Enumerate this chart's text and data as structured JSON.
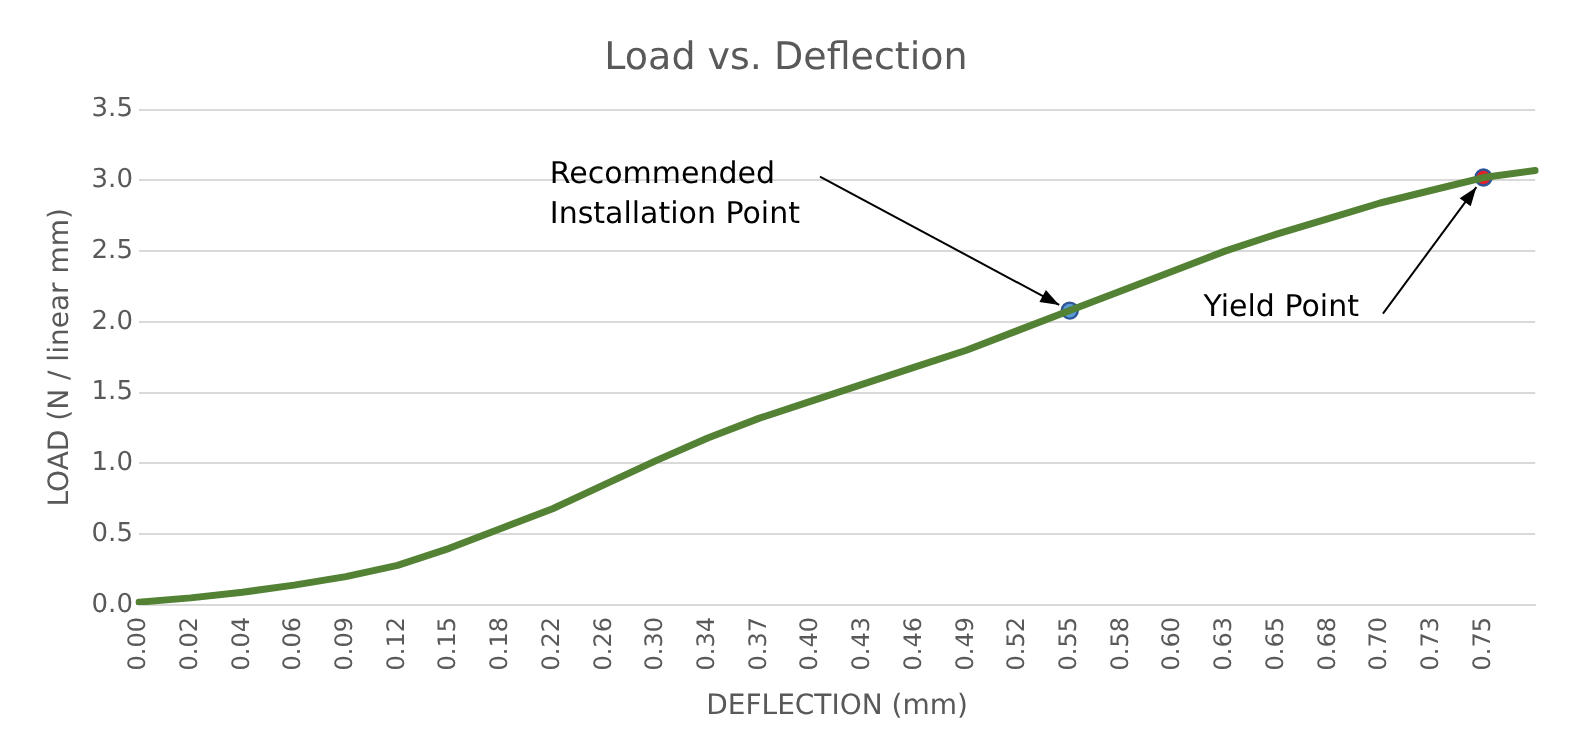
{
  "chart_data": {
    "type": "line",
    "title": "Load vs. Deflection",
    "xlabel": "DEFLECTION (mm)",
    "ylabel": "LOAD (N / linear mm)",
    "categories": [
      "0.00",
      "0.02",
      "0.04",
      "0.06",
      "0.09",
      "0.12",
      "0.15",
      "0.18",
      "0.22",
      "0.26",
      "0.30",
      "0.34",
      "0.37",
      "0.40",
      "0.43",
      "0.46",
      "0.49",
      "0.52",
      "0.55",
      "0.58",
      "0.60",
      "0.63",
      "0.65",
      "0.68",
      "0.70",
      "0.73",
      "0.75",
      null
    ],
    "series": [
      {
        "color": "#548235",
        "marker": "none",
        "values": [
          0.02,
          0.05,
          0.09,
          0.14,
          0.2,
          0.28,
          0.4,
          0.54,
          0.68,
          0.85,
          1.02,
          1.18,
          1.32,
          1.44,
          1.56,
          1.68,
          1.8,
          1.94,
          2.08,
          2.22,
          2.36,
          2.5,
          2.62,
          2.73,
          2.84,
          2.93,
          3.02,
          3.07
        ]
      },
      {
        "type": "scatter",
        "marker": "circle",
        "x": [
          "0.55",
          "0.75"
        ],
        "colors": [
          "#5b9bd5",
          "#e0202a"
        ],
        "values": [
          2.08,
          3.02
        ]
      }
    ],
    "ylim": [
      0,
      3.5
    ],
    "yticks": [
      {
        "value": 0,
        "label": "0.0"
      },
      {
        "value": 0.5,
        "label": "0.5"
      },
      {
        "value": 1,
        "label": "1.0"
      },
      {
        "value": 1.5,
        "label": "1.5"
      },
      {
        "value": 2,
        "label": "2.0"
      },
      {
        "value": 2.5,
        "label": "2.5"
      },
      {
        "value": 3,
        "label": "3.0"
      },
      {
        "value": 3.5,
        "label": "3.5"
      }
    ],
    "grid": "y",
    "legend": false,
    "line_style": "solid",
    "annotations": [
      {
        "text": "Recommended\nInstallation Point",
        "x": "0.55",
        "y": 2.08
      },
      {
        "text": "Yield Point",
        "x": "0.75",
        "y": 3.02
      }
    ]
  }
}
